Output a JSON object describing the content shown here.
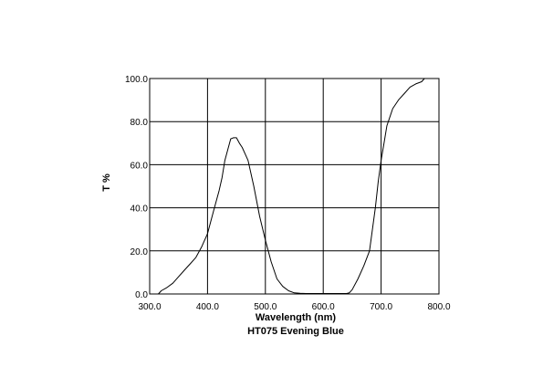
{
  "chart_data": {
    "type": "line",
    "xlabel": "Wavelength (nm)",
    "subtitle": "HT075 Evening Blue",
    "ylabel": "T %",
    "xlim": [
      300,
      800
    ],
    "ylim": [
      0,
      100
    ],
    "grid": true,
    "x_ticks": [
      300,
      400,
      500,
      600,
      700,
      800
    ],
    "y_ticks": [
      0,
      20,
      40,
      60,
      80,
      100
    ],
    "x_tick_labels": [
      "300.0",
      "400.0",
      "500.0",
      "600.0",
      "700.0",
      "800.0"
    ],
    "y_tick_labels": [
      "0.0",
      "20.0",
      "40.0",
      "60.0",
      "80.0",
      "100.0"
    ],
    "series": [
      {
        "color": "#000000",
        "x": [
          315,
          320,
          330,
          340,
          350,
          360,
          370,
          380,
          390,
          400,
          410,
          420,
          425,
          430,
          435,
          440,
          445,
          450,
          455,
          460,
          465,
          470,
          480,
          490,
          500,
          510,
          520,
          530,
          540,
          550,
          560,
          570,
          580,
          590,
          600,
          610,
          620,
          630,
          640,
          645,
          650,
          660,
          670,
          680,
          690,
          695,
          700,
          705,
          710,
          720,
          730,
          740,
          750,
          760,
          770,
          775
        ],
        "y": [
          0,
          1.5,
          3,
          5,
          8,
          11,
          14,
          17,
          22,
          28,
          38,
          48,
          54,
          62,
          67,
          72,
          72.5,
          72.5,
          70,
          68,
          65,
          62,
          50,
          36,
          25,
          15,
          7,
          3.5,
          1.5,
          0.5,
          0.3,
          0.2,
          0.2,
          0.2,
          0.2,
          0.2,
          0.2,
          0.2,
          0.2,
          0.5,
          2,
          7,
          13,
          20,
          40,
          52,
          62,
          70,
          78,
          86,
          90,
          93,
          96,
          97.5,
          98.5,
          100
        ]
      }
    ]
  }
}
